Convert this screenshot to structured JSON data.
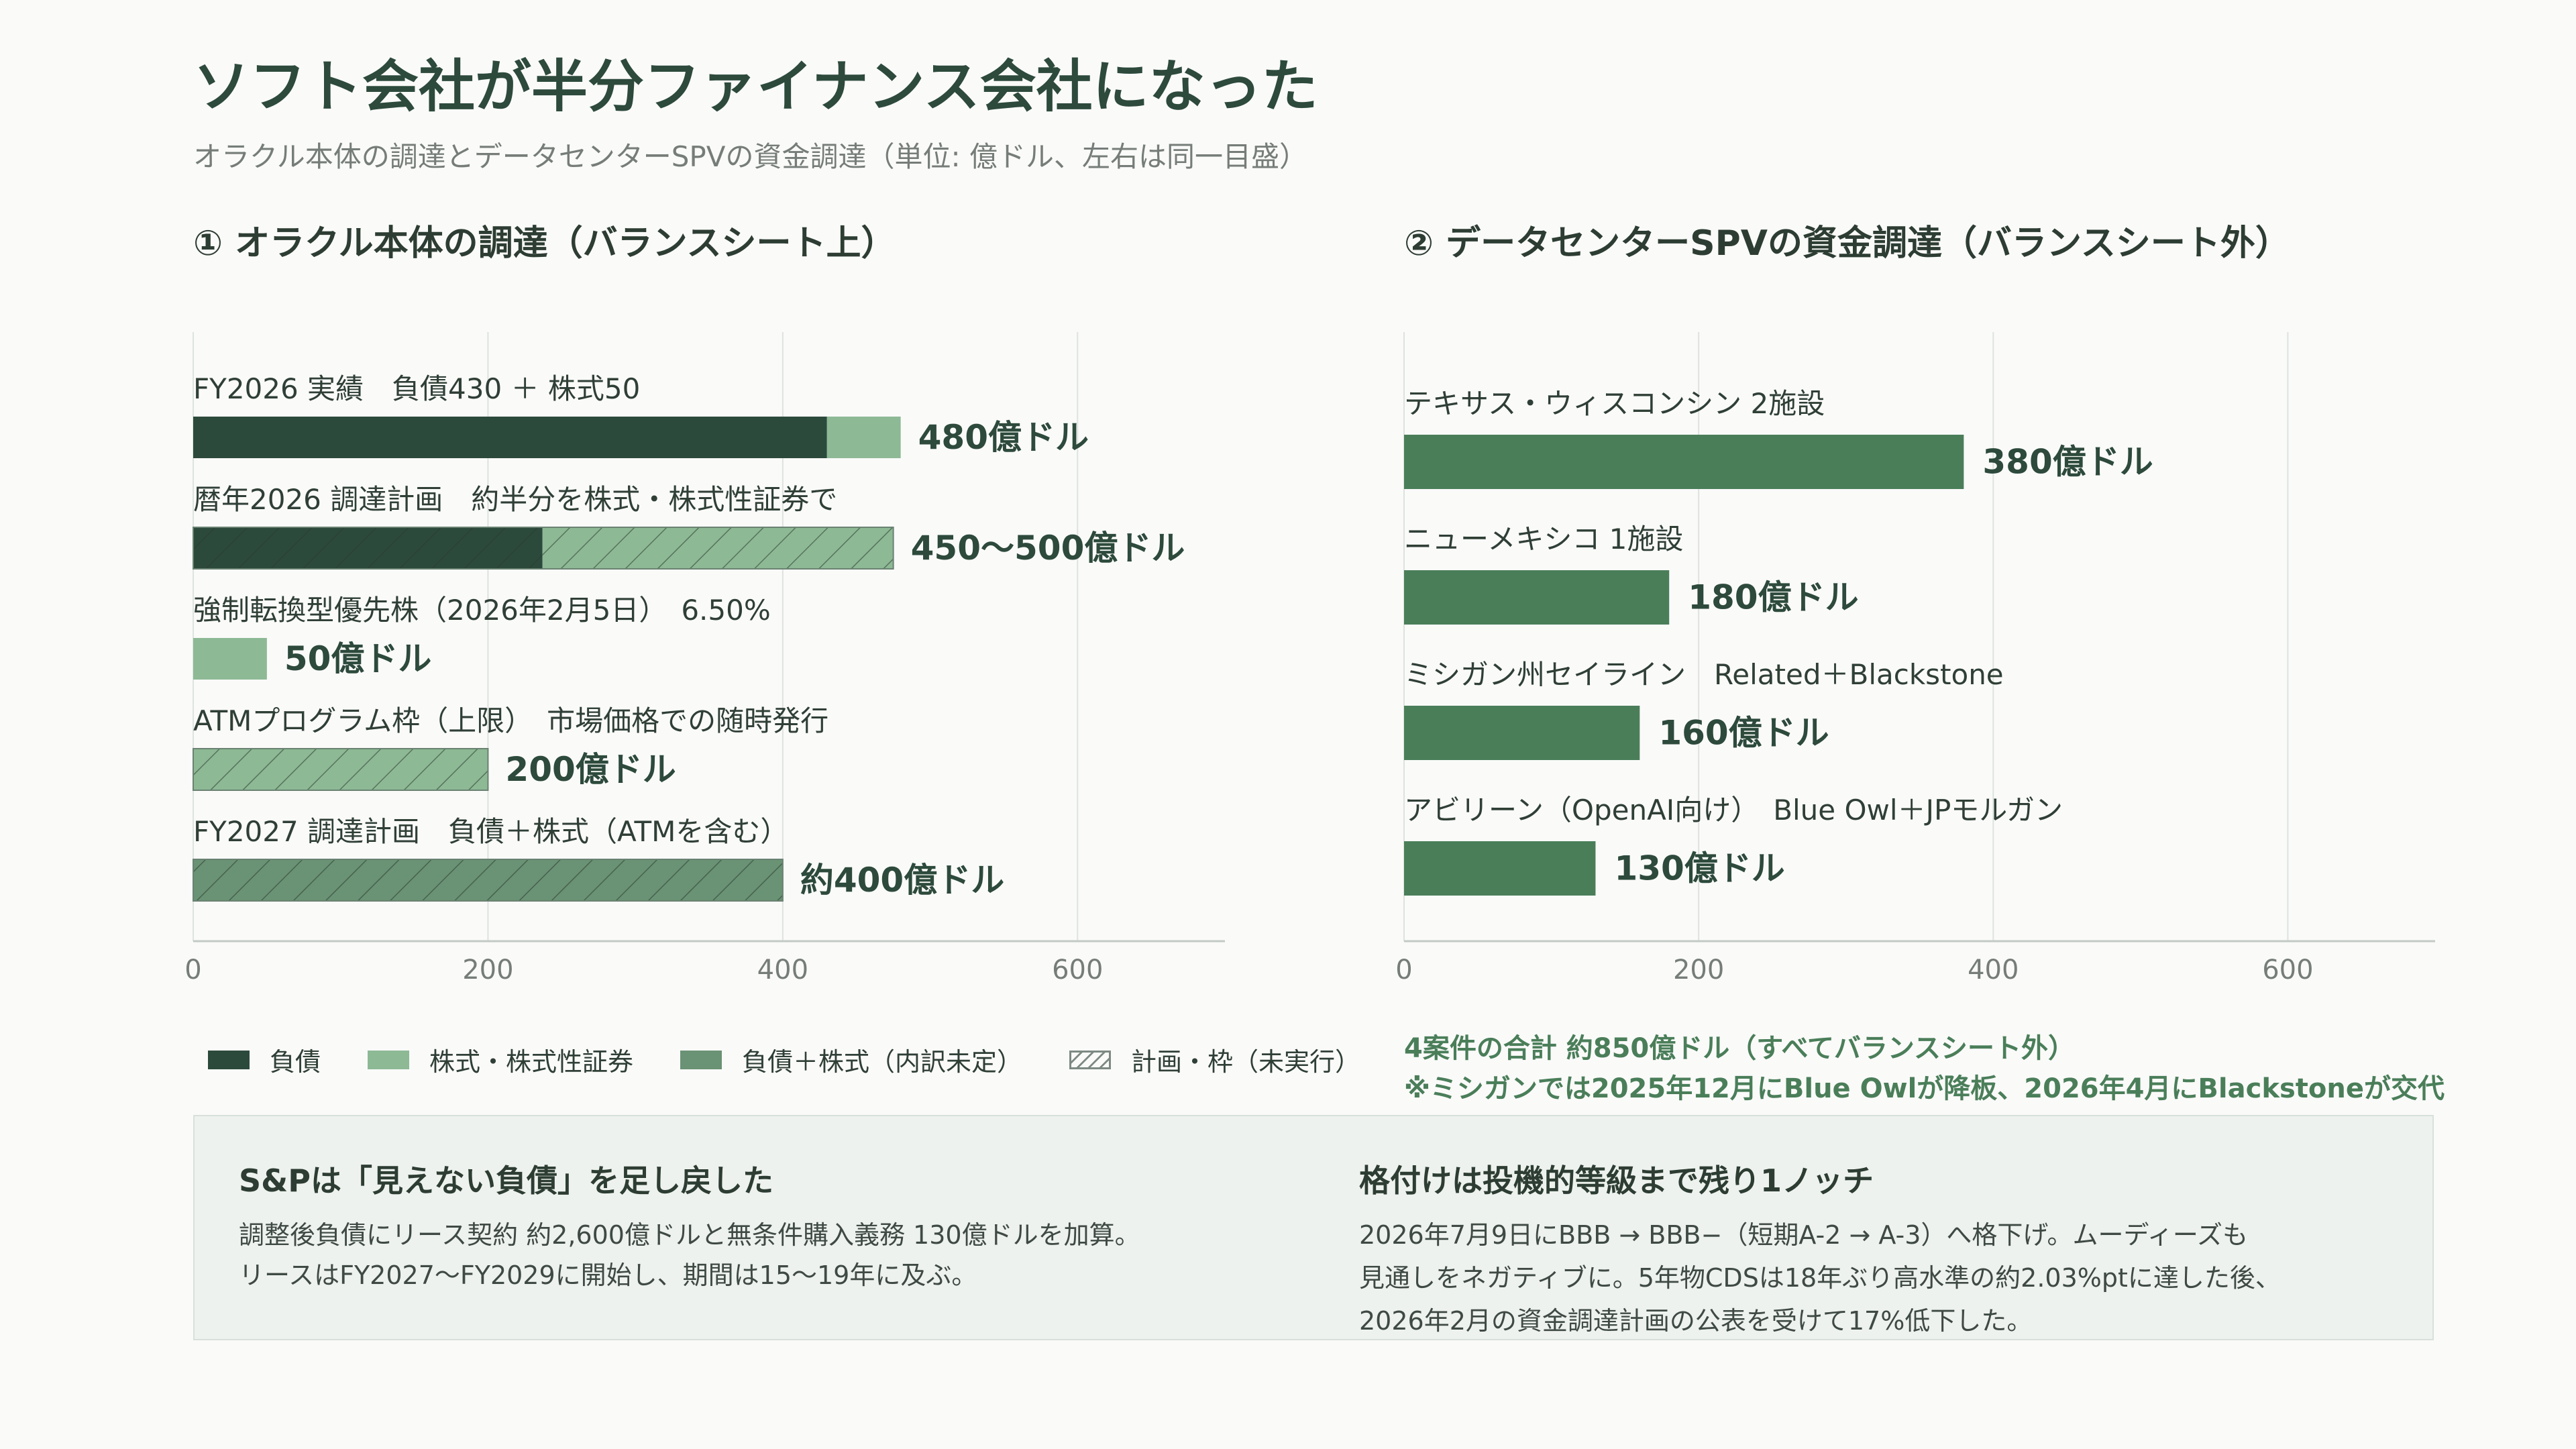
{
  "title": "ソフト会社が半分ファイナンス会社になった",
  "subtitle": "オラクル本体の調達とデータセンターSPVの資金調達（単位: 億ドル、左右は同一目盛）",
  "colors": {
    "debt": "#2c4a3c",
    "equity": "#8db995",
    "mixed": "#6a9274",
    "spv": "#4a7e59",
    "grid": "#dde3df",
    "axis": "#c3cbc6"
  },
  "chart_data": [
    {
      "type": "bar",
      "orientation": "horizontal",
      "stacked": true,
      "title": "① オラクル本体の調達（バランスシート上）",
      "xlim": [
        0,
        700
      ],
      "xticks": [
        0,
        200,
        400,
        600
      ],
      "grid": true,
      "bars": [
        {
          "label": "FY2026 実績　負債430 ＋ 株式50",
          "value_label": "480億ドル",
          "planned": false,
          "segments": [
            {
              "series": "負債",
              "value": 430
            },
            {
              "series": "株式・株式性証券",
              "value": 50
            }
          ]
        },
        {
          "label": "暦年2026 調達計画　約半分を株式・株式性証券で",
          "value_label": "450〜500億ドル",
          "planned": true,
          "segments": [
            {
              "series": "負債",
              "value": 237
            },
            {
              "series": "株式・株式性証券",
              "value": 238
            }
          ]
        },
        {
          "label": "強制転換型優先株（2026年2月5日）　6.50%",
          "value_label": "50億ドル",
          "planned": false,
          "segments": [
            {
              "series": "株式・株式性証券",
              "value": 50
            }
          ]
        },
        {
          "label": "ATMプログラム枠（上限）　市場価格での随時発行",
          "value_label": "200億ドル",
          "planned": true,
          "segments": [
            {
              "series": "株式・株式性証券",
              "value": 200
            }
          ]
        },
        {
          "label": "FY2027 調達計画　負債＋株式（ATMを含む）",
          "value_label": "約400億ドル",
          "planned": true,
          "segments": [
            {
              "series": "負債＋株式（内訳未定）",
              "value": 400
            }
          ]
        }
      ]
    },
    {
      "type": "bar",
      "orientation": "horizontal",
      "title": "② データセンターSPVの資金調達（バランスシート外）",
      "xlim": [
        0,
        700
      ],
      "xticks": [
        0,
        200,
        400,
        600
      ],
      "grid": true,
      "bars": [
        {
          "label": "テキサス・ウィスコンシン 2施設",
          "value": 380,
          "value_label": "380億ドル"
        },
        {
          "label": "ニューメキシコ 1施設",
          "value": 180,
          "value_label": "180億ドル"
        },
        {
          "label": "ミシガン州セイライン　Related＋Blackstone",
          "value": 160,
          "value_label": "160億ドル"
        },
        {
          "label": "アビリーン（OpenAI向け）　Blue Owl＋JPモルガン",
          "value": 130,
          "value_label": "130億ドル"
        }
      ]
    }
  ],
  "legend": {
    "debt": "負債",
    "equity": "株式・株式性証券",
    "mixed": "負債＋株式（内訳未定）",
    "planned": "計画・枠（未実行）"
  },
  "summary": {
    "total": "4案件の合計 約850億ドル（すべてバランスシート外）",
    "note": "※ミシガンでは2025年12月にBlue Owlが降板、2026年4月にBlackstoneが交代"
  },
  "notes": {
    "left": {
      "title": "S&Pは「見えない負債」を足し戻した",
      "lines": [
        "調整後負債にリース契約 約2,600億ドルと無条件購入義務 130億ドルを加算。",
        "リースはFY2027〜FY2029に開始し、期間は15〜19年に及ぶ。"
      ]
    },
    "right": {
      "title": "格付けは投機的等級まで残り1ノッチ",
      "lines": [
        "2026年7月9日にBBB → BBB−（短期A-2 → A-3）へ格下げ。ムーディーズも",
        "見通しをネガティブに。5年物CDSは18年ぶり高水準の約2.03%ptに達した後、",
        "2026年2月の資金調達計画の公表を受けて17%低下した。"
      ]
    }
  }
}
